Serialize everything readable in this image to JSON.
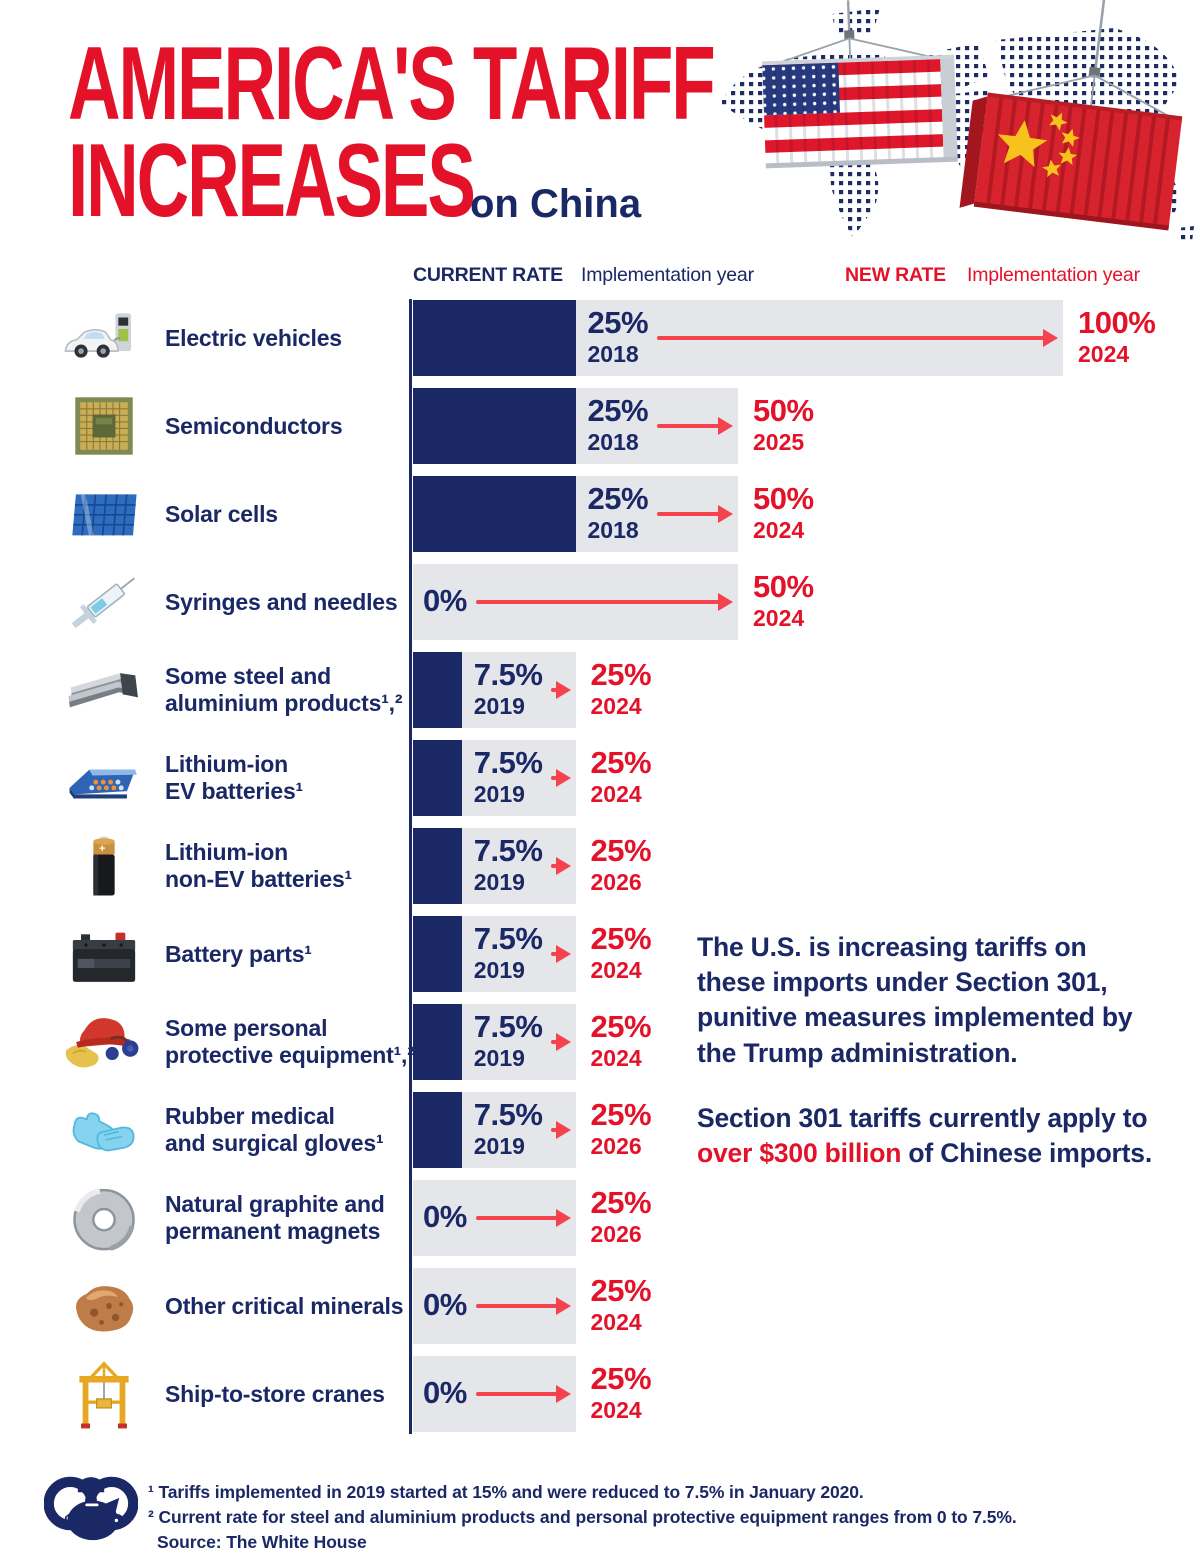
{
  "title": {
    "line1": "AMERICA'S TARIFF",
    "line2": "INCREASES",
    "subtitle": "on China"
  },
  "columns": {
    "current_rate": "CURRENT RATE",
    "current_impl_year": "Implementation year",
    "new_rate": "NEW RATE",
    "new_impl_year": "Implementation year"
  },
  "chart_data": {
    "type": "bar",
    "title": "America's Tariff Increases on China",
    "unit": "tariff rate (%)",
    "axis_max": 100,
    "legend": [
      "Current rate (navy bar)",
      "New rate (gray bar extent)"
    ],
    "rows": [
      {
        "label": "Electric vehicles",
        "label_lines": [
          "Electric vehicles"
        ],
        "icon": "electric-vehicle-icon",
        "current_rate": 25,
        "current_rate_label": "25%",
        "current_year": "2018",
        "new_rate": 100,
        "new_rate_label": "100%",
        "new_year": "2024"
      },
      {
        "label": "Semiconductors",
        "label_lines": [
          "Semiconductors"
        ],
        "icon": "semiconductor-chip-icon",
        "current_rate": 25,
        "current_rate_label": "25%",
        "current_year": "2018",
        "new_rate": 50,
        "new_rate_label": "50%",
        "new_year": "2025"
      },
      {
        "label": "Solar cells",
        "label_lines": [
          "Solar cells"
        ],
        "icon": "solar-panel-icon",
        "current_rate": 25,
        "current_rate_label": "25%",
        "current_year": "2018",
        "new_rate": 50,
        "new_rate_label": "50%",
        "new_year": "2024"
      },
      {
        "label": "Syringes and needles",
        "label_lines": [
          "Syringes and needles"
        ],
        "icon": "syringe-icon",
        "current_rate": 0,
        "current_rate_label": "0%",
        "current_year": "",
        "new_rate": 50,
        "new_rate_label": "50%",
        "new_year": "2024"
      },
      {
        "label": "Some steel and aluminium products¹,²",
        "label_lines": [
          "Some steel and",
          "aluminium products¹,²"
        ],
        "icon": "steel-beams-icon",
        "current_rate": 7.5,
        "current_rate_label": "7.5%",
        "current_year": "2019",
        "new_rate": 25,
        "new_rate_label": "25%",
        "new_year": "2024"
      },
      {
        "label": "Lithium-ion EV batteries¹",
        "label_lines": [
          "Lithium-ion",
          "EV batteries¹"
        ],
        "icon": "ev-battery-pack-icon",
        "current_rate": 7.5,
        "current_rate_label": "7.5%",
        "current_year": "2019",
        "new_rate": 25,
        "new_rate_label": "25%",
        "new_year": "2024"
      },
      {
        "label": "Lithium-ion non-EV batteries¹",
        "label_lines": [
          "Lithium-ion",
          "non-EV batteries¹"
        ],
        "icon": "cylindrical-battery-icon",
        "current_rate": 7.5,
        "current_rate_label": "7.5%",
        "current_year": "2019",
        "new_rate": 25,
        "new_rate_label": "25%",
        "new_year": "2026"
      },
      {
        "label": "Battery parts¹",
        "label_lines": [
          "Battery parts¹"
        ],
        "icon": "car-battery-icon",
        "current_rate": 7.5,
        "current_rate_label": "7.5%",
        "current_year": "2019",
        "new_rate": 25,
        "new_rate_label": "25%",
        "new_year": "2024"
      },
      {
        "label": "Some personal protective equipment¹,²",
        "label_lines": [
          "Some personal",
          "protective equipment¹,²"
        ],
        "icon": "ppe-hardhat-icon",
        "current_rate": 7.5,
        "current_rate_label": "7.5%",
        "current_year": "2019",
        "new_rate": 25,
        "new_rate_label": "25%",
        "new_year": "2024"
      },
      {
        "label": "Rubber medical and surgical gloves¹",
        "label_lines": [
          "Rubber medical",
          "and surgical gloves¹"
        ],
        "icon": "rubber-gloves-icon",
        "current_rate": 7.5,
        "current_rate_label": "7.5%",
        "current_year": "2019",
        "new_rate": 25,
        "new_rate_label": "25%",
        "new_year": "2026"
      },
      {
        "label": "Natural graphite and permanent magnets",
        "label_lines": [
          "Natural graphite and",
          "permanent magnets"
        ],
        "icon": "ring-magnet-icon",
        "current_rate": 0,
        "current_rate_label": "0%",
        "current_year": "",
        "new_rate": 25,
        "new_rate_label": "25%",
        "new_year": "2026"
      },
      {
        "label": "Other critical minerals",
        "label_lines": [
          "Other critical minerals"
        ],
        "icon": "mineral-nugget-icon",
        "current_rate": 0,
        "current_rate_label": "0%",
        "current_year": "",
        "new_rate": 25,
        "new_rate_label": "25%",
        "new_year": "2024"
      },
      {
        "label": "Ship-to-store cranes",
        "label_lines": [
          "Ship-to-store cranes"
        ],
        "icon": "gantry-crane-icon",
        "current_rate": 0,
        "current_rate_label": "0%",
        "current_year": "",
        "new_rate": 25,
        "new_rate_label": "25%",
        "new_year": "2024"
      }
    ]
  },
  "side_note": {
    "p1_before": "The U.S. is increasing tariffs on these imports under ",
    "p1_bold": "Section 301",
    "p1_after": ", punitive measures implemented by the Trump administration.",
    "p2_before": "Section 301 tariffs currently apply to ",
    "p2_bold": "over $300 billion",
    "p2_after": " of Chinese imports."
  },
  "footnotes": {
    "line1": "¹ Tariffs implemented in 2019 started at 15% and were reduced to 7.5% in January 2020.",
    "line2": "² Current rate for steel and aluminium products and personal protective equipment ranges from 0 to 7.5%.",
    "source": "Source: The White House"
  },
  "footer": {
    "logo_icon": "piggy-bank-binoculars-logo"
  },
  "colors": {
    "navy": "#1a2866",
    "red": "#e41229",
    "arrow_red": "#f4434d",
    "bar_gray": "#e4e6ea",
    "us_flag_red": "#e0162b",
    "us_flag_blue": "#273a80",
    "china_red": "#d7232e",
    "china_yellow": "#f7c21e"
  }
}
